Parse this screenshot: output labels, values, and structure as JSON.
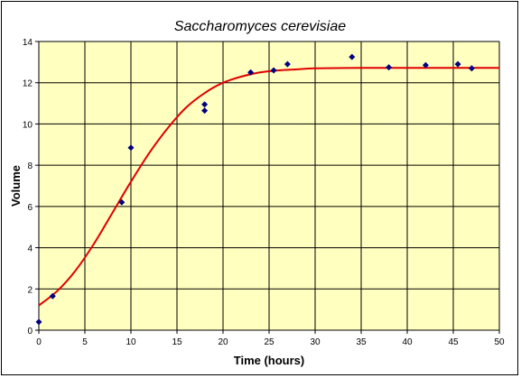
{
  "chart_data": {
    "type": "scatter",
    "title": "Saccharomyces cerevisiae",
    "xlabel": "Time (hours)",
    "ylabel": "Volume",
    "xlim": [
      0,
      50
    ],
    "ylim": [
      0,
      14
    ],
    "xticks": [
      0,
      5,
      10,
      15,
      20,
      25,
      30,
      35,
      40,
      45,
      50
    ],
    "yticks": [
      0,
      2,
      4,
      6,
      8,
      10,
      12,
      14
    ],
    "grid": true,
    "legend": "none",
    "colors": {
      "plot_background": "#ffffc0",
      "grid": "#000000",
      "points": "#000080",
      "fit_line": "#e00000"
    },
    "series": [
      {
        "type": "scatter",
        "x": [
          0,
          1.5,
          9,
          10,
          18,
          18,
          23,
          25.5,
          27,
          34,
          38,
          42,
          45.5,
          47
        ],
        "y": [
          0.4,
          1.65,
          6.2,
          8.85,
          10.95,
          10.65,
          12.5,
          12.6,
          12.9,
          13.25,
          12.75,
          12.85,
          12.9,
          12.7
        ]
      },
      {
        "type": "line",
        "x": [
          0,
          2,
          4,
          6,
          8,
          10,
          12,
          14,
          16,
          18,
          20,
          22,
          24,
          26,
          28,
          30,
          35,
          40,
          45,
          50
        ],
        "y": [
          1.2,
          1.9,
          2.9,
          4.2,
          5.7,
          7.2,
          8.6,
          9.8,
          10.8,
          11.5,
          12.0,
          12.3,
          12.5,
          12.6,
          12.65,
          12.7,
          12.72,
          12.72,
          12.72,
          12.72
        ]
      }
    ]
  }
}
